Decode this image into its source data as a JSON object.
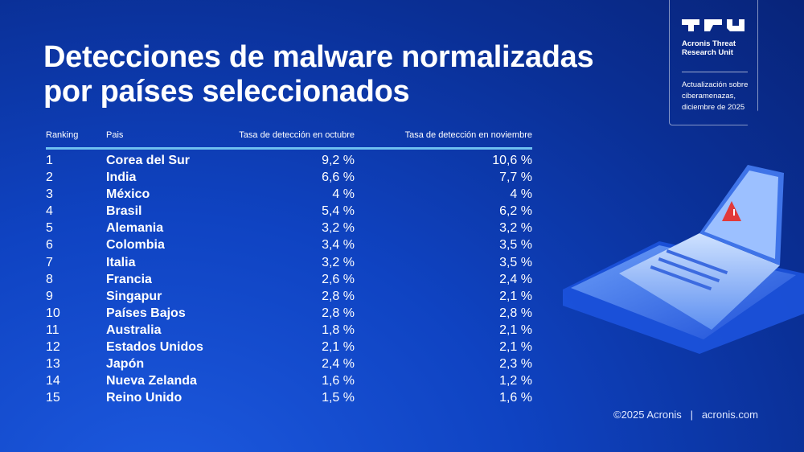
{
  "title": {
    "line1": "Detecciones de malware normalizadas",
    "line2": "por países seleccionados"
  },
  "badge": {
    "logo": "TRU",
    "org": "Acronis Threat Research Unit",
    "update": "Actualización sobre ciberamenazas, diciembre de 2025"
  },
  "footer": {
    "copyright": "©2025 Acronis",
    "separator": "|",
    "site": "acronis.com"
  },
  "colors": {
    "accent_line": "#6fc0f0",
    "background": "#0f43c2"
  },
  "chart_data": {
    "type": "table",
    "columns": [
      "Ranking",
      "Pais",
      "Tasa de detección en octubre",
      "Tasa de detección en noviembre"
    ],
    "rows": [
      [
        "1",
        "Corea del Sur",
        "9,2 %",
        "10,6 %"
      ],
      [
        "2",
        "India",
        "6,6 %",
        "7,7 %"
      ],
      [
        "3",
        "México",
        "4 %",
        "4 %"
      ],
      [
        "4",
        "Brasil",
        "5,4 %",
        "6,2 %"
      ],
      [
        "5",
        "Alemania",
        "3,2 %",
        "3,2 %"
      ],
      [
        "6",
        "Colombia",
        "3,4 %",
        "3,5 %"
      ],
      [
        "7",
        "Italia",
        "3,2 %",
        "3,5 %"
      ],
      [
        "8",
        "Francia",
        "2,6 %",
        "2,4 %"
      ],
      [
        "9",
        "Singapur",
        "2,8 %",
        "2,1 %"
      ],
      [
        "10",
        "Países Bajos",
        "2,8 %",
        "2,8 %"
      ],
      [
        "11",
        "Australia",
        "1,8 %",
        "2,1 %"
      ],
      [
        "12",
        "Estados Unidos",
        "2,1 %",
        "2,1 %"
      ],
      [
        "13",
        "Japón",
        "2,4 %",
        "2,3 %"
      ],
      [
        "14",
        "Nueva Zelanda",
        "1,6 %",
        "1,2 %"
      ],
      [
        "15",
        "Reino Unido",
        "1,5 %",
        "1,6 %"
      ]
    ]
  }
}
